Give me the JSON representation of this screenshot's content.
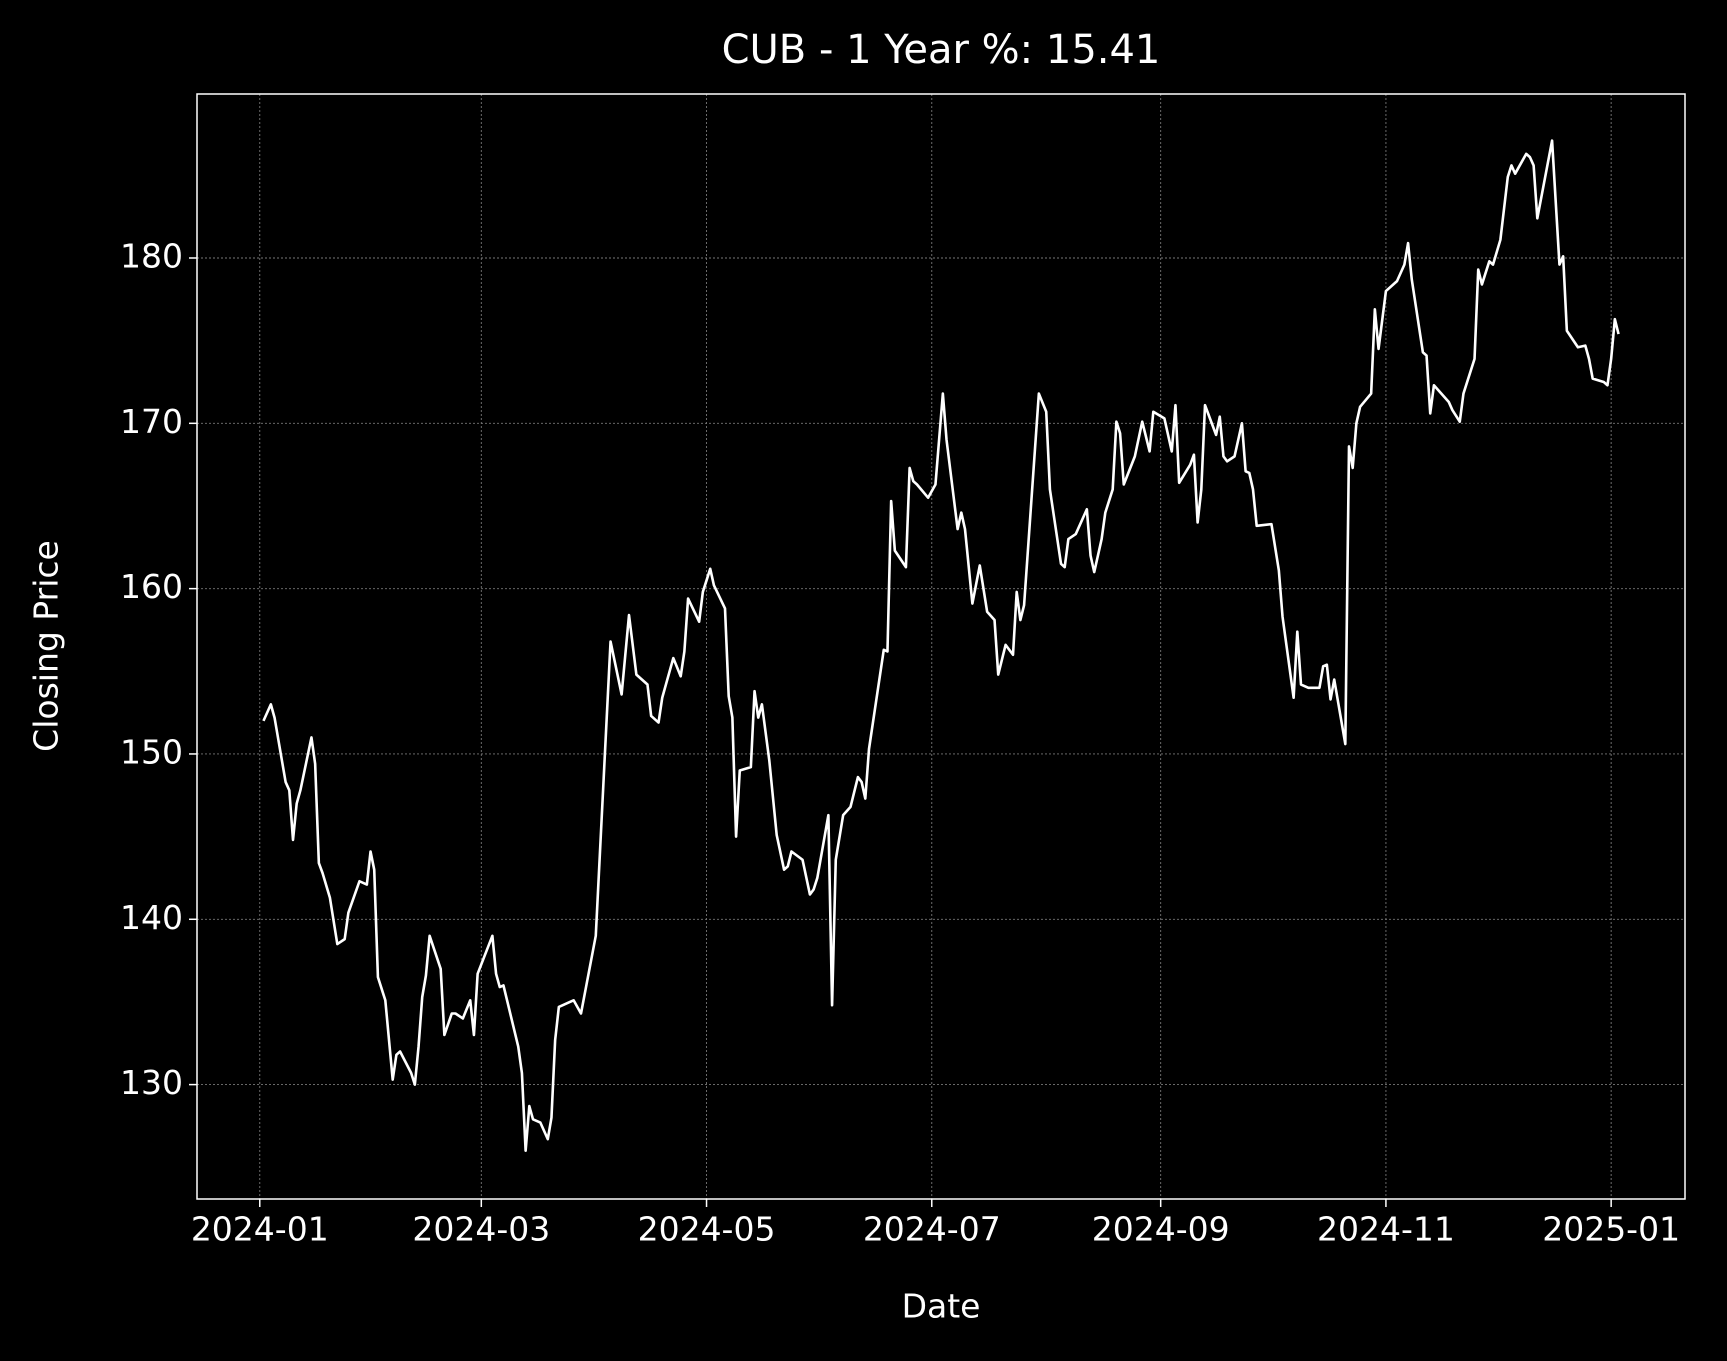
{
  "chart_data": {
    "type": "line",
    "title": "CUB - 1 Year %: 15.41",
    "x_label": "Date",
    "y_label": "Closing Price",
    "color": "#ffffff",
    "grid": true,
    "xlim": [
      "2023-12-15",
      "2025-01-21"
    ],
    "ylim": [
      123.08,
      189.92
    ],
    "yticks": [
      130,
      140,
      150,
      160,
      170,
      180
    ],
    "xticks": [
      {
        "value": "2024-01-01",
        "label": "2024-01"
      },
      {
        "value": "2024-03-01",
        "label": "2024-03"
      },
      {
        "value": "2024-05-01",
        "label": "2024-05"
      },
      {
        "value": "2024-07-01",
        "label": "2024-07"
      },
      {
        "value": "2024-09-01",
        "label": "2024-09"
      },
      {
        "value": "2024-11-01",
        "label": "2024-11"
      },
      {
        "value": "2025-01-01",
        "label": "2025-01"
      }
    ],
    "x": [
      "2024-01-02",
      "2024-01-04",
      "2024-01-05",
      "2024-01-08",
      "2024-01-09",
      "2024-01-10",
      "2024-01-11",
      "2024-01-12",
      "2024-01-15",
      "2024-01-16",
      "2024-01-17",
      "2024-01-18",
      "2024-01-20",
      "2024-01-22",
      "2024-01-24",
      "2024-01-25",
      "2024-01-28",
      "2024-01-30",
      "2024-01-31",
      "2024-02-01",
      "2024-02-02",
      "2024-02-04",
      "2024-02-06",
      "2024-02-07",
      "2024-02-08",
      "2024-02-11",
      "2024-02-12",
      "2024-02-13",
      "2024-02-14",
      "2024-02-15",
      "2024-02-16",
      "2024-02-19",
      "2024-02-20",
      "2024-02-22",
      "2024-02-23",
      "2024-02-25",
      "2024-02-27",
      "2024-02-28",
      "2024-02-29",
      "2024-03-04",
      "2024-03-05",
      "2024-03-06",
      "2024-03-07",
      "2024-03-11",
      "2024-03-12",
      "2024-03-13",
      "2024-03-14",
      "2024-03-15",
      "2024-03-17",
      "2024-03-19",
      "2024-03-20",
      "2024-03-21",
      "2024-03-22",
      "2024-03-25",
      "2024-03-26",
      "2024-03-28",
      "2024-04-01",
      "2024-04-05",
      "2024-04-08",
      "2024-04-10",
      "2024-04-12",
      "2024-04-15",
      "2024-04-16",
      "2024-04-18",
      "2024-04-19",
      "2024-04-22",
      "2024-04-24",
      "2024-04-25",
      "2024-04-26",
      "2024-04-29",
      "2024-04-30",
      "2024-05-02",
      "2024-05-03",
      "2024-05-06",
      "2024-05-07",
      "2024-05-08",
      "2024-05-09",
      "2024-05-10",
      "2024-05-13",
      "2024-05-14",
      "2024-05-15",
      "2024-05-16",
      "2024-05-18",
      "2024-05-20",
      "2024-05-22",
      "2024-05-23",
      "2024-05-24",
      "2024-05-27",
      "2024-05-29",
      "2024-05-30",
      "2024-05-31",
      "2024-06-03",
      "2024-06-04",
      "2024-06-05",
      "2024-06-07",
      "2024-06-09",
      "2024-06-11",
      "2024-06-12",
      "2024-06-13",
      "2024-06-14",
      "2024-06-18",
      "2024-06-19",
      "2024-06-20",
      "2024-06-21",
      "2024-06-24",
      "2024-06-25",
      "2024-06-26",
      "2024-06-27",
      "2024-06-30",
      "2024-07-02",
      "2024-07-04",
      "2024-07-05",
      "2024-07-08",
      "2024-07-09",
      "2024-07-10",
      "2024-07-12",
      "2024-07-14",
      "2024-07-16",
      "2024-07-18",
      "2024-07-19",
      "2024-07-21",
      "2024-07-23",
      "2024-07-24",
      "2024-07-25",
      "2024-07-26",
      "2024-07-30",
      "2024-08-01",
      "2024-08-02",
      "2024-08-05",
      "2024-08-06",
      "2024-08-07",
      "2024-08-09",
      "2024-08-12",
      "2024-08-13",
      "2024-08-14",
      "2024-08-16",
      "2024-08-17",
      "2024-08-19",
      "2024-08-20",
      "2024-08-21",
      "2024-08-22",
      "2024-08-25",
      "2024-08-27",
      "2024-08-29",
      "2024-08-30",
      "2024-09-02",
      "2024-09-04",
      "2024-09-05",
      "2024-09-06",
      "2024-09-09",
      "2024-09-10",
      "2024-09-11",
      "2024-09-12",
      "2024-09-13",
      "2024-09-16",
      "2024-09-17",
      "2024-09-18",
      "2024-09-19",
      "2024-09-21",
      "2024-09-23",
      "2024-09-24",
      "2024-09-25",
      "2024-09-26",
      "2024-09-27",
      "2024-10-01",
      "2024-10-03",
      "2024-10-04",
      "2024-10-07",
      "2024-10-08",
      "2024-10-09",
      "2024-10-11",
      "2024-10-14",
      "2024-10-15",
      "2024-10-16",
      "2024-10-17",
      "2024-10-18",
      "2024-10-21",
      "2024-10-22",
      "2024-10-23",
      "2024-10-24",
      "2024-10-25",
      "2024-10-28",
      "2024-10-29",
      "2024-10-30",
      "2024-11-01",
      "2024-11-04",
      "2024-11-06",
      "2024-11-07",
      "2024-11-08",
      "2024-11-11",
      "2024-11-12",
      "2024-11-13",
      "2024-11-14",
      "2024-11-18",
      "2024-11-19",
      "2024-11-21",
      "2024-11-22",
      "2024-11-25",
      "2024-11-26",
      "2024-11-27",
      "2024-11-29",
      "2024-11-30",
      "2024-12-02",
      "2024-12-04",
      "2024-12-05",
      "2024-12-06",
      "2024-12-09",
      "2024-12-10",
      "2024-12-11",
      "2024-12-12",
      "2024-12-16",
      "2024-12-18",
      "2024-12-19",
      "2024-12-20",
      "2024-12-23",
      "2024-12-25",
      "2024-12-26",
      "2024-12-27",
      "2024-12-30",
      "2024-12-31",
      "2025-01-01",
      "2025-01-02",
      "2025-01-03"
    ],
    "values": [
      152.0,
      153.0,
      152.2,
      148.3,
      147.8,
      144.8,
      147.0,
      147.8,
      151.0,
      149.4,
      143.4,
      142.8,
      141.3,
      138.5,
      138.8,
      140.4,
      142.3,
      142.1,
      144.1,
      143.0,
      136.5,
      135.1,
      130.3,
      131.8,
      132.0,
      130.7,
      130.0,
      132.3,
      135.3,
      136.6,
      139.0,
      137.0,
      133.0,
      134.3,
      134.3,
      134.0,
      135.1,
      133.0,
      136.7,
      139.0,
      136.7,
      135.9,
      136.0,
      132.3,
      130.7,
      126.0,
      128.7,
      127.9,
      127.7,
      126.7,
      128.0,
      132.7,
      134.7,
      135.0,
      135.1,
      134.3,
      139.0,
      156.8,
      153.6,
      158.4,
      154.8,
      154.2,
      152.3,
      151.9,
      153.4,
      155.8,
      154.7,
      156.2,
      159.4,
      158.0,
      159.8,
      161.2,
      160.2,
      158.8,
      153.5,
      152.2,
      145.0,
      149.0,
      149.2,
      153.8,
      152.2,
      153.0,
      149.6,
      145.1,
      143.0,
      143.2,
      144.1,
      143.6,
      141.5,
      141.8,
      142.5,
      146.3,
      134.8,
      143.6,
      146.3,
      146.8,
      148.6,
      148.3,
      147.3,
      150.3,
      156.3,
      156.2,
      165.3,
      162.3,
      161.3,
      167.3,
      166.5,
      166.3,
      165.5,
      166.3,
      171.8,
      169.0,
      163.6,
      164.6,
      163.6,
      159.1,
      161.4,
      158.6,
      158.1,
      154.8,
      156.6,
      156.0,
      159.8,
      158.1,
      159.0,
      171.8,
      170.7,
      166.0,
      161.5,
      161.3,
      163.0,
      163.3,
      164.8,
      162.0,
      161.0,
      163.0,
      164.6,
      166.0,
      170.1,
      169.4,
      166.3,
      168.0,
      170.1,
      168.3,
      170.7,
      170.3,
      168.3,
      171.1,
      166.4,
      167.5,
      168.1,
      164.0,
      166.0,
      171.1,
      169.3,
      170.4,
      168.0,
      167.7,
      168.0,
      170.0,
      167.1,
      167.0,
      166.0,
      163.8,
      163.9,
      161.1,
      158.3,
      153.4,
      157.4,
      154.2,
      154.0,
      154.0,
      155.3,
      155.4,
      153.3,
      154.5,
      150.6,
      168.6,
      167.3,
      170.0,
      171.0,
      171.8,
      176.9,
      174.5,
      178.0,
      178.6,
      179.6,
      180.9,
      178.7,
      174.3,
      174.1,
      170.6,
      172.3,
      171.3,
      170.8,
      170.1,
      171.8,
      173.9,
      179.3,
      178.4,
      179.8,
      179.6,
      181.1,
      184.9,
      185.6,
      185.1,
      186.3,
      186.1,
      185.6,
      182.4,
      187.1,
      179.6,
      180.1,
      175.6,
      174.6,
      174.7,
      173.9,
      172.7,
      172.5,
      172.3,
      173.9,
      176.3,
      175.4
    ]
  }
}
